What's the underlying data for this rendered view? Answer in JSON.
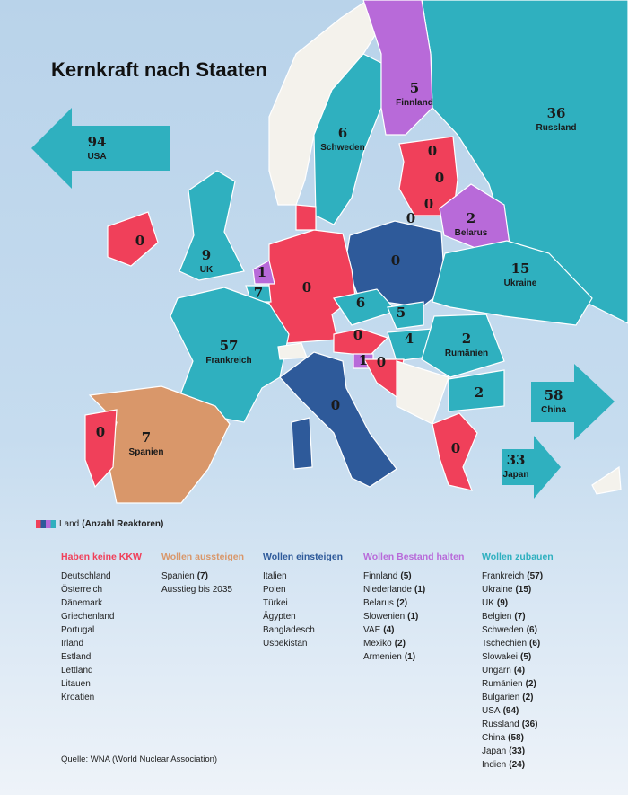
{
  "title": "Kernkraft nach Staaten",
  "map_labels": [
    {
      "value": 94,
      "name": "USA"
    },
    {
      "value": 5,
      "name": "Finnland"
    },
    {
      "value": 36,
      "name": "Russland"
    },
    {
      "value": 6,
      "name": "Schweden"
    },
    {
      "value": 0
    },
    {
      "value": 0
    },
    {
      "value": 0
    },
    {
      "value": 2,
      "name": "Belarus"
    },
    {
      "value": 0
    },
    {
      "value": 0
    },
    {
      "value": 9,
      "name": "UK"
    },
    {
      "value": 1
    },
    {
      "value": 0
    },
    {
      "value": 15,
      "name": "Ukraine"
    },
    {
      "value": 0
    },
    {
      "value": 7
    },
    {
      "value": 6
    },
    {
      "value": 5
    },
    {
      "value": 57,
      "name": "Frankreich"
    },
    {
      "value": 0
    },
    {
      "value": 4
    },
    {
      "value": 2,
      "name": "Rumänien"
    },
    {
      "value": 1
    },
    {
      "value": 0
    },
    {
      "value": 58,
      "name": "China"
    },
    {
      "value": 2
    },
    {
      "value": 0
    },
    {
      "value": 7,
      "name": "Spanien"
    },
    {
      "value": 0
    },
    {
      "value": 0
    },
    {
      "value": 33,
      "name": "Japan"
    }
  ],
  "legend": {
    "label": "Land",
    "detail": "(Anzahl Reaktoren)"
  },
  "columns": [
    {
      "heading": "Haben keine KKW",
      "items": [
        "Deutschland",
        "Österreich",
        "Dänemark",
        "Griechenland",
        "Portugal",
        "Irland",
        "Estland",
        "Lettland",
        "Litauen",
        "Kroatien"
      ]
    },
    {
      "heading": "Wollen aussteigen",
      "items": [
        {
          "name": "Spanien",
          "count": "(7)"
        },
        "Ausstieg bis 2035"
      ]
    },
    {
      "heading": "Wollen einsteigen",
      "items": [
        "Italien",
        "Polen",
        "Türkei",
        "Ägypten",
        "Bangladesch",
        "Usbekistan"
      ]
    },
    {
      "heading": "Wollen Bestand halten",
      "items": [
        {
          "name": "Finnland",
          "count": "(5)"
        },
        {
          "name": "Niederlande",
          "count": "(1)"
        },
        {
          "name": "Belarus",
          "count": "(2)"
        },
        {
          "name": "Slowenien",
          "count": "(1)"
        },
        {
          "name": "VAE",
          "count": "(4)"
        },
        {
          "name": "Mexiko",
          "count": "(2)"
        },
        {
          "name": "Armenien",
          "count": "(1)"
        }
      ]
    },
    {
      "heading": "Wollen zubauen",
      "items": [
        {
          "name": "Frankreich",
          "count": "(57)"
        },
        {
          "name": "Ukraine",
          "count": "(15)"
        },
        {
          "name": "UK",
          "count": "(9)"
        },
        {
          "name": "Belgien",
          "count": "(7)"
        },
        {
          "name": "Schweden",
          "count": "(6)"
        },
        {
          "name": "Tschechien",
          "count": "(6)"
        },
        {
          "name": "Slowakei",
          "count": "(5)"
        },
        {
          "name": "Ungarn",
          "count": "(4)"
        },
        {
          "name": "Rumänien",
          "count": "(2)"
        },
        {
          "name": "Bulgarien",
          "count": "(2)"
        },
        {
          "name": "USA",
          "count": "(94)"
        },
        {
          "name": "Russland",
          "count": "(36)"
        },
        {
          "name": "China",
          "count": "(58)"
        },
        {
          "name": "Japan",
          "count": "(33)"
        },
        {
          "name": "Indien",
          "count": "(24)"
        }
      ]
    }
  ],
  "source": "Quelle: WNA (World Nuclear Association)"
}
